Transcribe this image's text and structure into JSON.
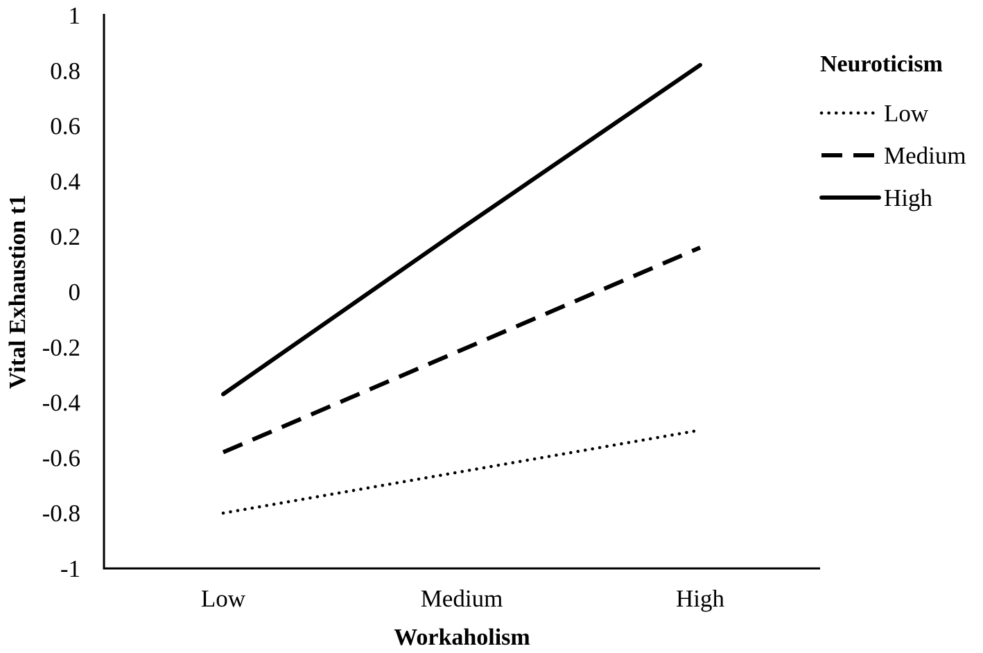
{
  "chart_data": {
    "type": "line",
    "title": "",
    "xlabel": "Workaholism",
    "ylabel": "Vital Exhaustion t1",
    "categories": [
      "Low",
      "Medium",
      "High"
    ],
    "y_ticks": [
      "1",
      "0.8",
      "0.6",
      "0.4",
      "0.2",
      "0",
      "-0.2",
      "-0.4",
      "-0.6",
      "-0.8",
      "-1"
    ],
    "ylim": [
      -1,
      1
    ],
    "grid": false,
    "legend": {
      "title": "Neuroticism",
      "placement": "right"
    },
    "series": [
      {
        "name": "Low",
        "style": "dotted",
        "color": "#000000",
        "values": [
          -0.8,
          -0.65,
          -0.5
        ]
      },
      {
        "name": "Medium",
        "style": "dashed",
        "color": "#000000",
        "values": [
          -0.58,
          -0.21,
          0.16
        ]
      },
      {
        "name": "High",
        "style": "solid",
        "color": "#000000",
        "values": [
          -0.37,
          0.23,
          0.82
        ]
      }
    ]
  }
}
